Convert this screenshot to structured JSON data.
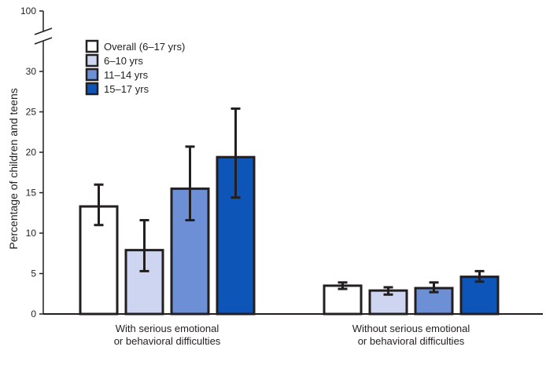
{
  "chart_data": {
    "type": "bar",
    "title": "",
    "xlabel": "",
    "ylabel": "Percentage of children and teens",
    "ylim": [
      0,
      30
    ],
    "axis_break": {
      "from": 30,
      "to": 100
    },
    "yticks": [
      0,
      5,
      10,
      15,
      20,
      25,
      30,
      100
    ],
    "categories": [
      "With serious emotional\nor behavioral difficulties",
      "Without serious emotional\nor behavioral difficulties"
    ],
    "category_lines": [
      [
        "With serious emotional",
        "or behavioral difficulties"
      ],
      [
        "Without serious emotional",
        "or behavioral difficulties"
      ]
    ],
    "legend_position": "top-left",
    "grid": false,
    "series": [
      {
        "name": "Overall (6–17 yrs)",
        "color": "#ffffff",
        "values": [
          13.3,
          3.5
        ],
        "ci_low": [
          11.0,
          3.1
        ],
        "ci_high": [
          16.0,
          3.9
        ]
      },
      {
        "name": "6–10 yrs",
        "color": "#cdd5f0",
        "values": [
          7.9,
          2.9
        ],
        "ci_low": [
          5.3,
          2.4
        ],
        "ci_high": [
          11.6,
          3.3
        ]
      },
      {
        "name": "11–14 yrs",
        "color": "#6d8fd6",
        "values": [
          15.5,
          3.2
        ],
        "ci_low": [
          11.6,
          2.7
        ],
        "ci_high": [
          20.7,
          3.9
        ]
      },
      {
        "name": "15–17 yrs",
        "color": "#0d56b8",
        "values": [
          19.4,
          4.6
        ],
        "ci_low": [
          14.4,
          4.0
        ],
        "ci_high": [
          25.4,
          5.3
        ]
      }
    ]
  }
}
